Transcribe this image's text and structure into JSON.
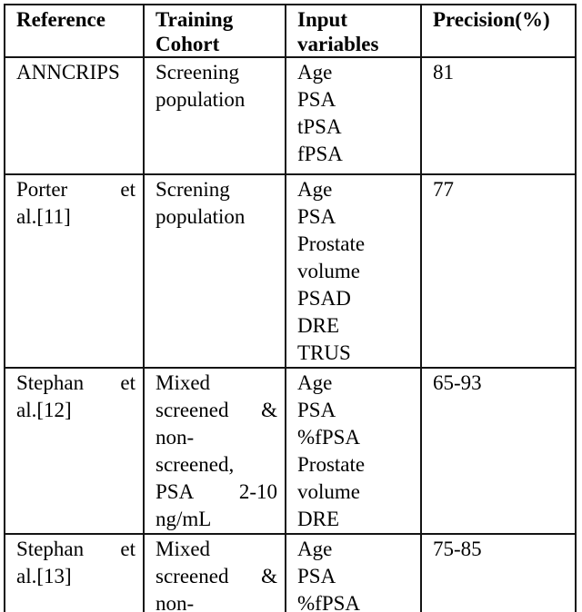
{
  "document": {
    "kind": "academic-paper-table",
    "background_color": "#ffffff",
    "border_color": "#141414",
    "text_color": "#000000"
  },
  "table": {
    "columns": [
      {
        "id": "reference",
        "label": "Reference",
        "lines": [
          "Reference"
        ]
      },
      {
        "id": "cohort",
        "label": "Training Cohort",
        "lines": [
          "Training",
          "Cohort"
        ]
      },
      {
        "id": "inputs",
        "label": "Input variables",
        "lines": [
          "Input",
          "variables"
        ]
      },
      {
        "id": "precision",
        "label": "Precision(%)",
        "lines": [
          "Precision(%)"
        ]
      }
    ],
    "rows": [
      {
        "reference": [
          "ANNCRIPS"
        ],
        "cohort": [
          "Screening",
          "population"
        ],
        "inputs": [
          "Age",
          "PSA",
          "tPSA",
          "fPSA"
        ],
        "precision": [
          "81"
        ]
      },
      {
        "reference": [
          "Porter et",
          "al.[11]"
        ],
        "cohort": [
          "Screning",
          "population"
        ],
        "inputs": [
          "Age",
          "PSA",
          "Prostate",
          "volume",
          "PSAD",
          "DRE",
          "TRUS"
        ],
        "precision": [
          "77"
        ]
      },
      {
        "reference": [
          "Stephan et",
          "al.[12]"
        ],
        "cohort": [
          "Mixed",
          "screened &",
          "non-",
          "screened,",
          "PSA 2-10",
          "ng/mL"
        ],
        "inputs": [
          "Age",
          "PSA",
          "%fPSA",
          "Prostate",
          "volume",
          "DRE"
        ],
        "precision": [
          "65-93"
        ]
      },
      {
        "reference": [
          "Stephan et",
          "al.[13]"
        ],
        "cohort": [
          "Mixed",
          "screened &",
          "non-"
        ],
        "inputs": [
          "Age",
          "PSA",
          "%fPSA"
        ],
        "precision": [
          "75-85"
        ]
      }
    ]
  }
}
